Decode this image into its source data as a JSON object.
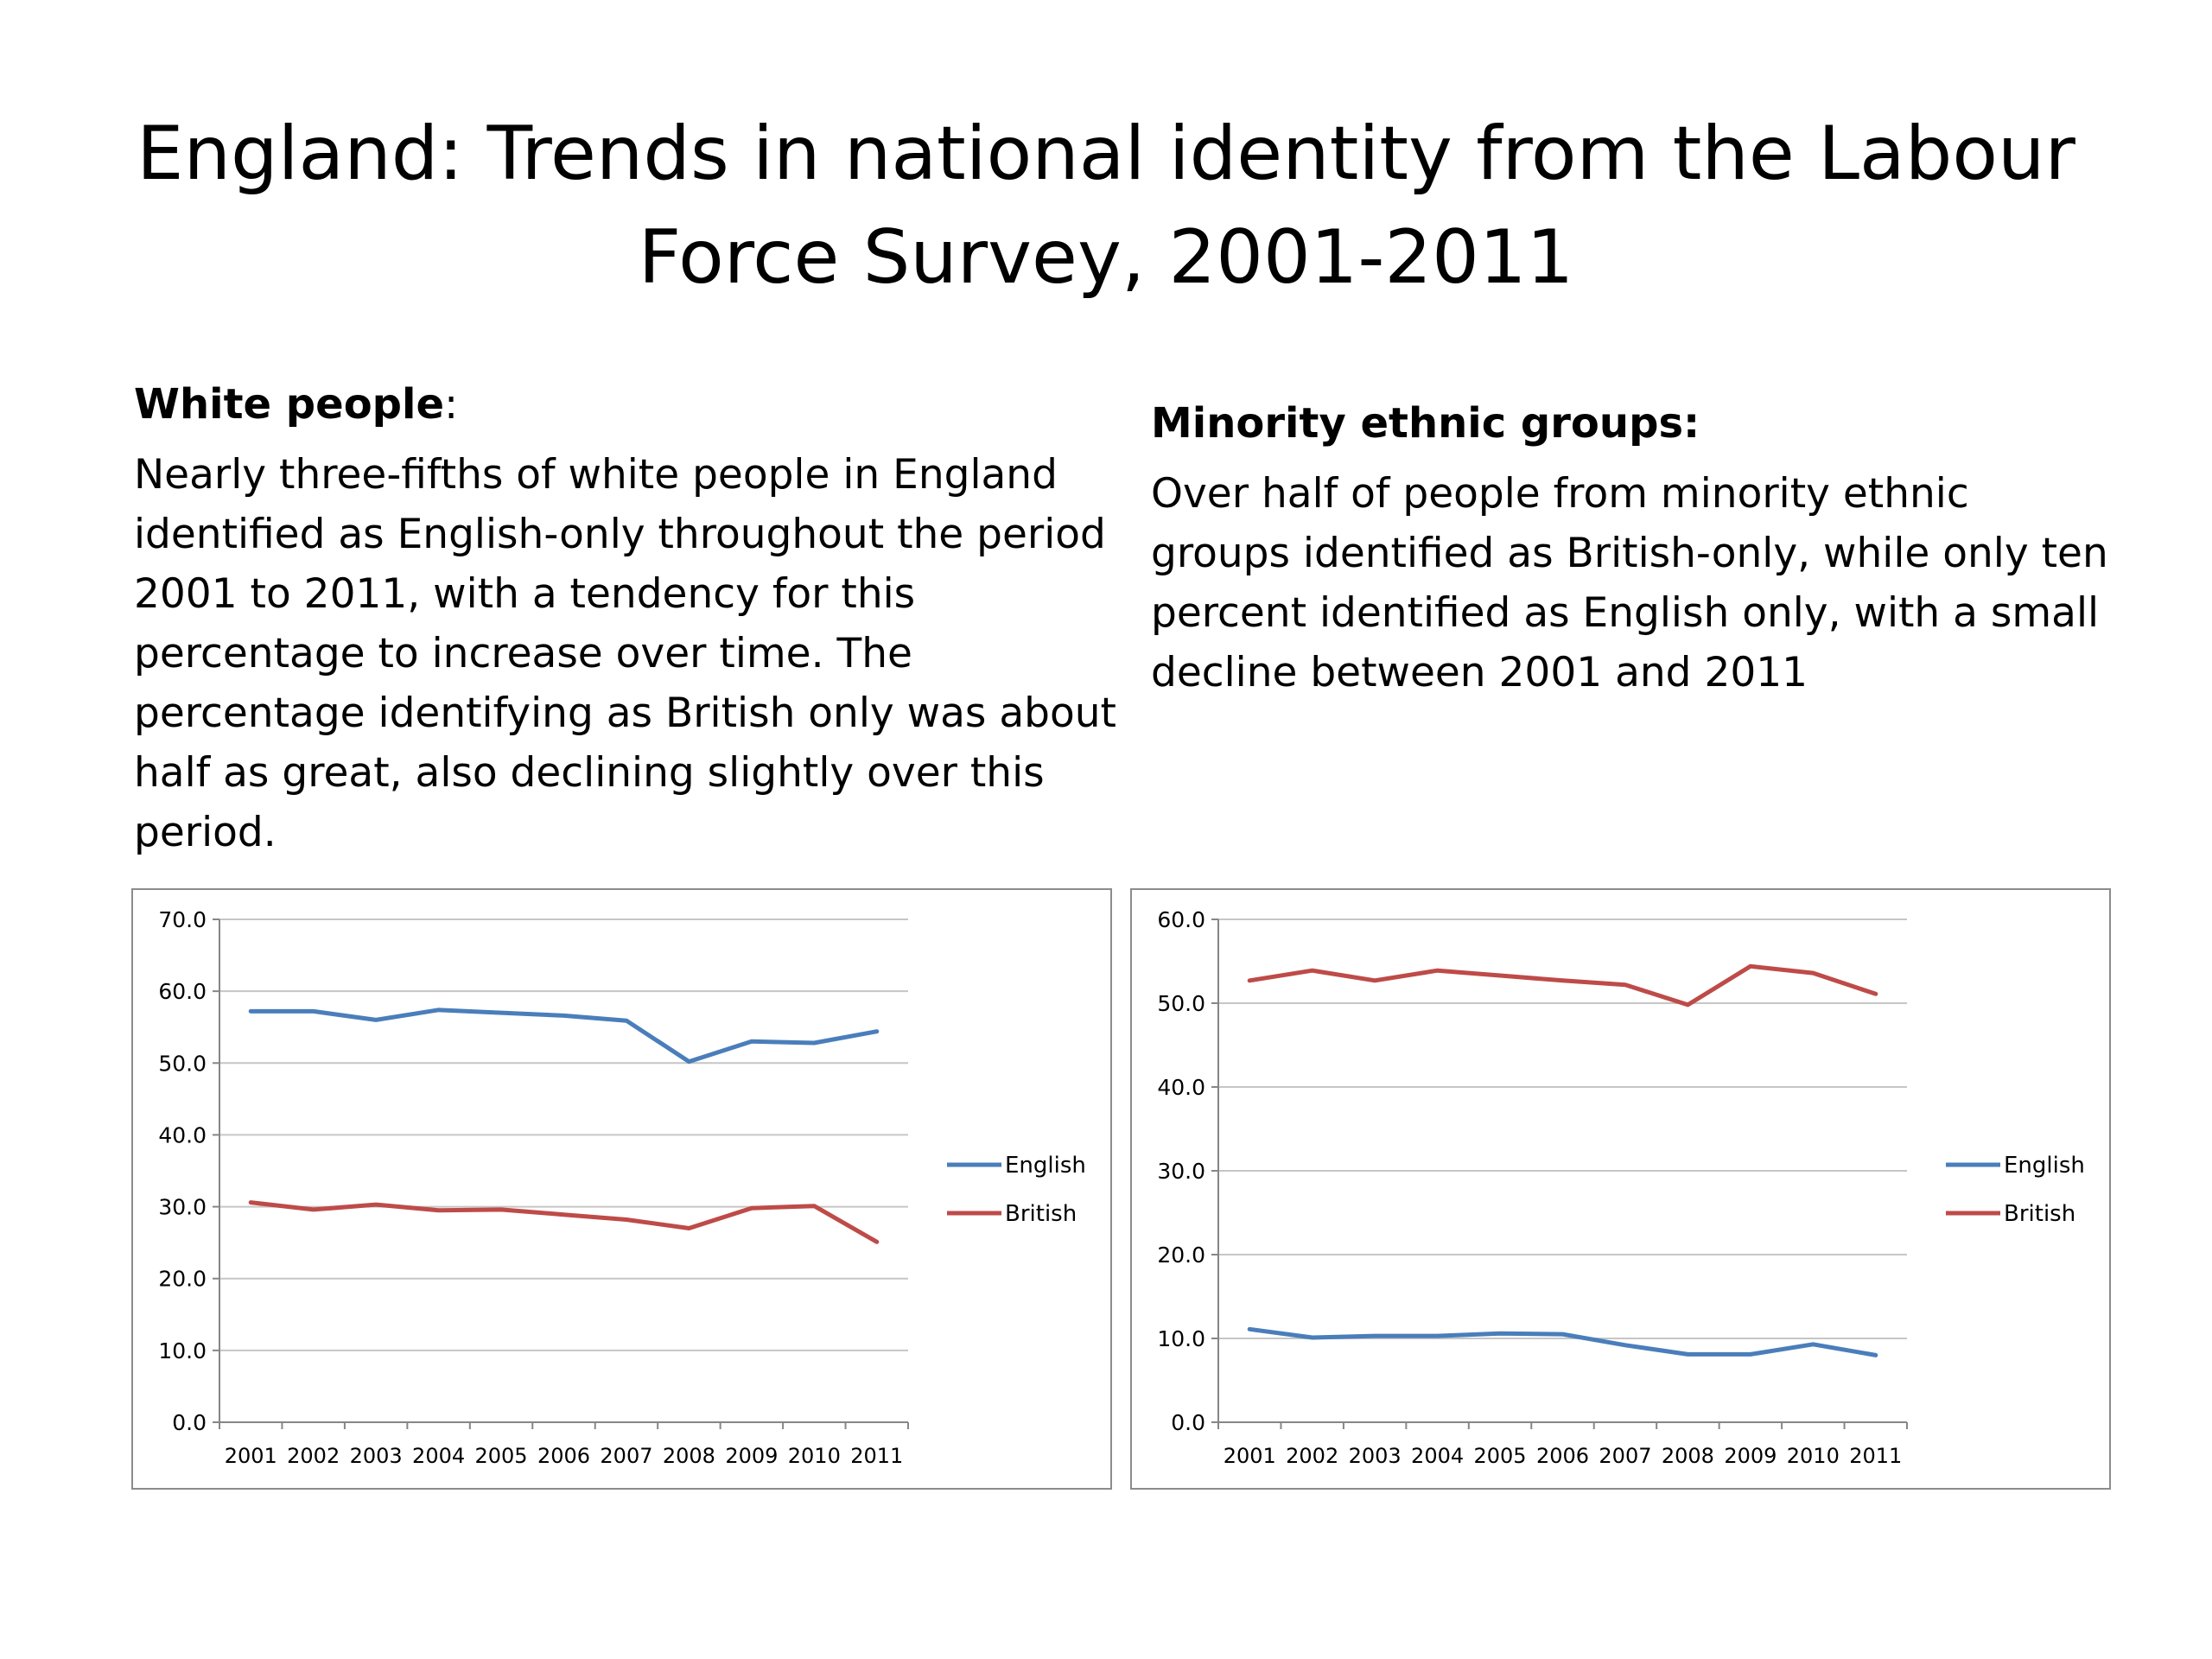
{
  "title": "England: Trends in national identity from the Labour Force Survey, 2001-2011",
  "left": {
    "heading": "White people",
    "heading_suffix": ":",
    "body": "Nearly three-fifths  of white people in England identified as English-only throughout the period 2001 to 2011, with a tendency for this percentage to increase over time. The percentage identifying as British only was about half as great, also declining slightly over this period."
  },
  "right": {
    "heading": "Minority ethnic groups:",
    "body": "Over half of people from minority ethnic groups identified as British-only, while only ten percent identified as English only, with a small decline between 2001 and 2011"
  },
  "colors": {
    "English": "#4a7ebb",
    "British": "#be4b48"
  },
  "chart_data": [
    {
      "type": "line",
      "title": "",
      "xlabel": "",
      "ylabel": "",
      "categories": [
        "2001",
        "2002",
        "2003",
        "2004",
        "2005",
        "2006",
        "2007",
        "2008",
        "2009",
        "2010",
        "2011"
      ],
      "ylim": [
        0,
        70
      ],
      "ystep": 10,
      "ytick_labels": [
        "0.0",
        "10.0",
        "20.0",
        "30.0",
        "40.0",
        "50.0",
        "60.0",
        "70.0"
      ],
      "grid": true,
      "legend": "right",
      "series": [
        {
          "name": "English",
          "values": [
            57.2,
            57.2,
            56.0,
            57.4,
            57.0,
            56.6,
            55.9,
            50.2,
            53.0,
            52.8,
            54.4
          ]
        },
        {
          "name": "British",
          "values": [
            30.6,
            29.6,
            30.3,
            29.5,
            29.6,
            28.9,
            28.2,
            27.0,
            29.8,
            30.1,
            25.1
          ]
        }
      ]
    },
    {
      "type": "line",
      "title": "",
      "xlabel": "",
      "ylabel": "",
      "categories": [
        "2001",
        "2002",
        "2003",
        "2004",
        "2005",
        "2006",
        "2007",
        "2008",
        "2009",
        "2010",
        "2011"
      ],
      "ylim": [
        0,
        60
      ],
      "ystep": 10,
      "ytick_labels": [
        "0.0",
        "10.0",
        "20.0",
        "30.0",
        "40.0",
        "50.0",
        "60.0"
      ],
      "grid": true,
      "legend": "right",
      "series": [
        {
          "name": "English",
          "values": [
            11.1,
            10.1,
            10.3,
            10.3,
            10.6,
            10.5,
            9.2,
            8.1,
            8.1,
            9.3,
            8.0
          ]
        },
        {
          "name": "British",
          "values": [
            52.7,
            53.9,
            52.7,
            53.9,
            53.3,
            52.7,
            52.2,
            49.8,
            54.4,
            53.6,
            51.1
          ]
        }
      ]
    }
  ]
}
